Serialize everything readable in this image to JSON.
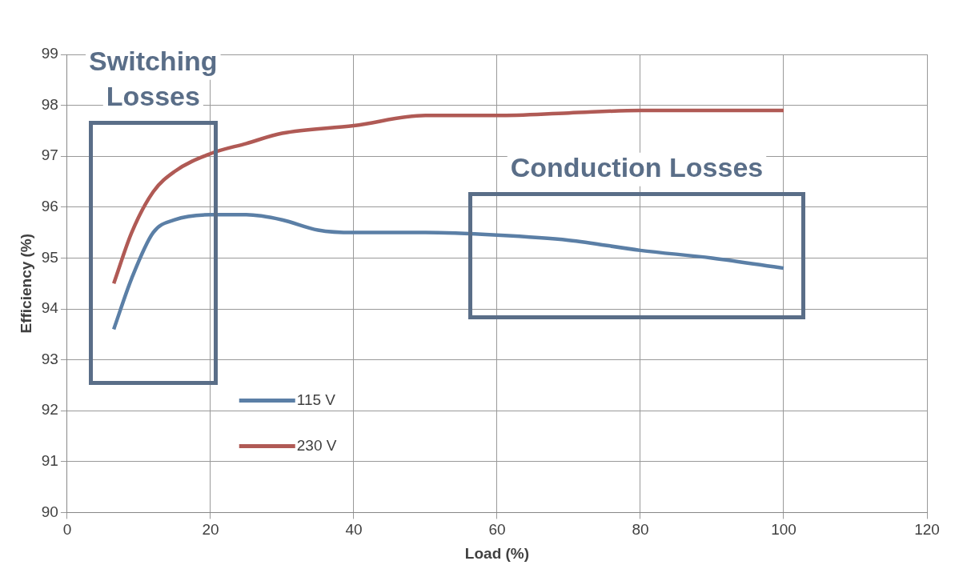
{
  "chart_data": {
    "type": "line",
    "xlabel": "Load (%)",
    "ylabel": "Efficiency (%)",
    "xlim": [
      0,
      120
    ],
    "xticks": [
      0,
      20,
      40,
      60,
      80,
      100,
      120
    ],
    "ylim": [
      90,
      99
    ],
    "yticks": [
      90,
      91,
      92,
      93,
      94,
      95,
      96,
      97,
      98,
      99
    ],
    "grid": true,
    "legend": "bottom left",
    "marker": "none",
    "line_style": "solid",
    "series": [
      {
        "name": "115 V",
        "color": "#5b7fa6",
        "x": [
          6.5,
          9,
          12,
          15,
          20,
          25,
          30,
          35,
          40,
          50,
          60,
          70,
          80,
          90,
          100
        ],
        "values": [
          93.6,
          94.6,
          95.5,
          95.75,
          95.85,
          95.85,
          95.75,
          95.55,
          95.5,
          95.5,
          95.45,
          95.35,
          95.15,
          95,
          94.8
        ]
      },
      {
        "name": "230 V",
        "color": "#b05a55",
        "x": [
          6.5,
          9,
          12,
          15,
          20,
          25,
          30,
          40,
          50,
          60,
          70,
          80,
          90,
          100
        ],
        "values": [
          94.5,
          95.5,
          96.3,
          96.7,
          97.05,
          97.25,
          97.45,
          97.6,
          97.8,
          97.8,
          97.85,
          97.9,
          97.9,
          97.9
        ]
      }
    ],
    "annotations": [
      "Switching Losses",
      "Conduction Losses"
    ]
  }
}
